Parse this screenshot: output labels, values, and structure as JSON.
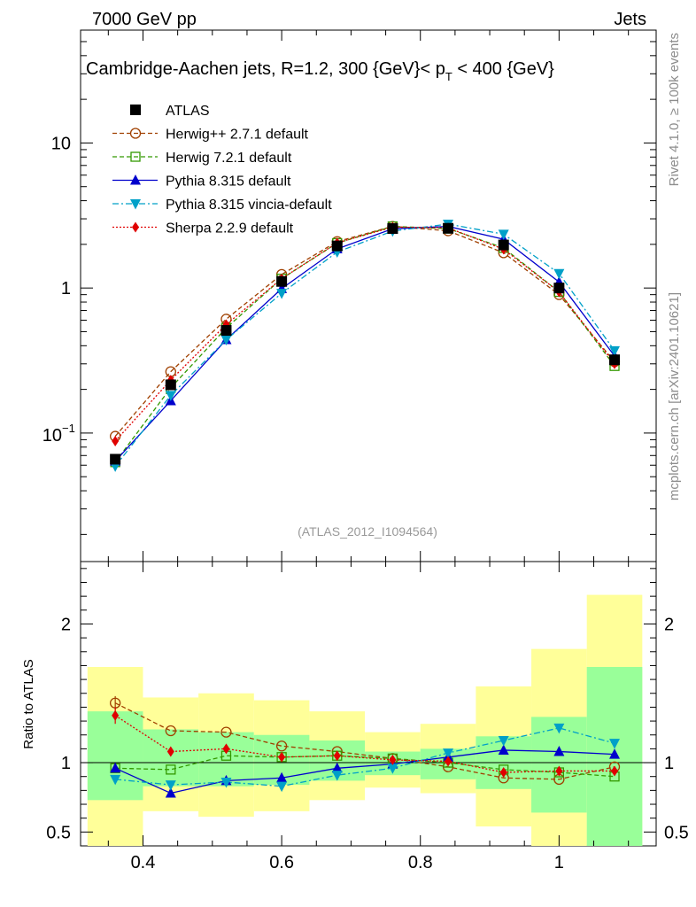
{
  "header": {
    "left_label": "7000 GeV pp",
    "right_label": "Jets"
  },
  "title_parts": {
    "main": "Cambridge-Aachen jets, R=1.2,  300 {GeV}< p",
    "sub": "T",
    "rest": " < 400 {GeV}"
  },
  "side_text": {
    "rivet": "Rivet 4.1.0, ≥ 100k events",
    "mcplots": "mcplots.cern.ch [arXiv:2401.10621]"
  },
  "watermark": "(ATLAS_2012_I1094564)",
  "ratio_ylabel": "Ratio to ATLAS",
  "main_yticks": [
    {
      "label": "10",
      "exp": "",
      "value": 10
    },
    {
      "label": "1",
      "exp": "",
      "value": 1
    },
    {
      "label": "10",
      "exp": "−1",
      "value": 0.1
    }
  ],
  "ratio_yticks": [
    {
      "label": "2",
      "value": 2
    },
    {
      "label": "1",
      "value": 1
    },
    {
      "label": "0.5",
      "value": 0.5
    }
  ],
  "x_ticks": [
    "0.4",
    "0.6",
    "0.8",
    "1"
  ],
  "chart_data": {
    "type": "line",
    "xlim": [
      0.31,
      1.14
    ],
    "ylim_main": [
      0.013,
      60
    ],
    "ylim_ratio": [
      0.4,
      2.45
    ],
    "x": [
      0.36,
      0.44,
      0.52,
      0.6,
      0.68,
      0.76,
      0.84,
      0.92,
      1.0,
      1.08
    ],
    "x_edges": [
      0.32,
      0.4,
      0.48,
      0.56,
      0.64,
      0.72,
      0.8,
      0.88,
      0.96,
      1.04,
      1.12
    ],
    "band_yellow": {
      "lo": [
        0.4,
        0.65,
        0.61,
        0.65,
        0.73,
        0.82,
        0.78,
        0.54,
        0.4,
        0.4
      ],
      "hi": [
        1.69,
        1.47,
        1.5,
        1.45,
        1.37,
        1.22,
        1.28,
        1.55,
        1.82,
        2.21
      ]
    },
    "band_green": {
      "lo": [
        0.73,
        0.83,
        0.83,
        0.84,
        0.87,
        0.91,
        0.88,
        0.81,
        0.64,
        0.4
      ],
      "hi": [
        1.37,
        1.24,
        1.22,
        1.2,
        1.16,
        1.08,
        1.1,
        1.19,
        1.33,
        1.69
      ]
    },
    "series": [
      {
        "name": "ATLAS",
        "color": "#000000",
        "marker": "square-filled",
        "dash": "",
        "values": [
          0.066,
          0.215,
          0.51,
          1.11,
          1.95,
          2.57,
          2.58,
          1.98,
          1.0,
          0.32
        ],
        "ratio": [
          1,
          1,
          1,
          1,
          1,
          1,
          1,
          1,
          1,
          1
        ]
      },
      {
        "name": "Herwig++ 2.7.1 default",
        "color": "#a04000",
        "marker": "circle-open",
        "dash": "5,3",
        "values": [
          0.095,
          0.265,
          0.61,
          1.24,
          2.09,
          2.66,
          2.48,
          1.75,
          0.9,
          0.31
        ],
        "ratio": [
          1.43,
          1.23,
          1.22,
          1.12,
          1.08,
          1.03,
          0.97,
          0.89,
          0.88,
          0.97
        ]
      },
      {
        "name": "Herwig 7.2.1 default",
        "color": "#339900",
        "marker": "square-open",
        "dash": "5,3",
        "values": [
          0.063,
          0.205,
          0.53,
          1.16,
          2.04,
          2.66,
          2.57,
          1.89,
          0.94,
          0.29
        ],
        "ratio": [
          0.96,
          0.95,
          1.05,
          1.04,
          1.05,
          1.03,
          1.0,
          0.95,
          0.93,
          0.9
        ]
      },
      {
        "name": "Pythia 8.315 default",
        "color": "#0000cc",
        "marker": "triangle-up",
        "dash": "",
        "values": [
          0.064,
          0.167,
          0.44,
          0.99,
          1.86,
          2.56,
          2.66,
          2.17,
          1.1,
          0.34
        ],
        "ratio": [
          0.96,
          0.78,
          0.87,
          0.89,
          0.96,
          0.99,
          1.04,
          1.09,
          1.08,
          1.06
        ]
      },
      {
        "name": "Pythia 8.315 vincia-default",
        "color": "#00a0c8",
        "marker": "triangle-down",
        "dash": "7,3,2,3",
        "values": [
          0.059,
          0.182,
          0.44,
          0.92,
          1.77,
          2.47,
          2.76,
          2.35,
          1.26,
          0.37
        ],
        "ratio": [
          0.88,
          0.84,
          0.86,
          0.83,
          0.91,
          0.96,
          1.07,
          1.16,
          1.25,
          1.14
        ]
      },
      {
        "name": "Sherpa 2.2.9 default",
        "color": "#e00000",
        "marker": "diamond",
        "dash": "2,2",
        "values": [
          0.088,
          0.232,
          0.56,
          1.16,
          2.05,
          2.63,
          2.6,
          1.85,
          0.94,
          0.3
        ],
        "ratio": [
          1.34,
          1.08,
          1.1,
          1.04,
          1.05,
          1.02,
          1.01,
          0.93,
          0.94,
          0.94
        ]
      }
    ]
  }
}
